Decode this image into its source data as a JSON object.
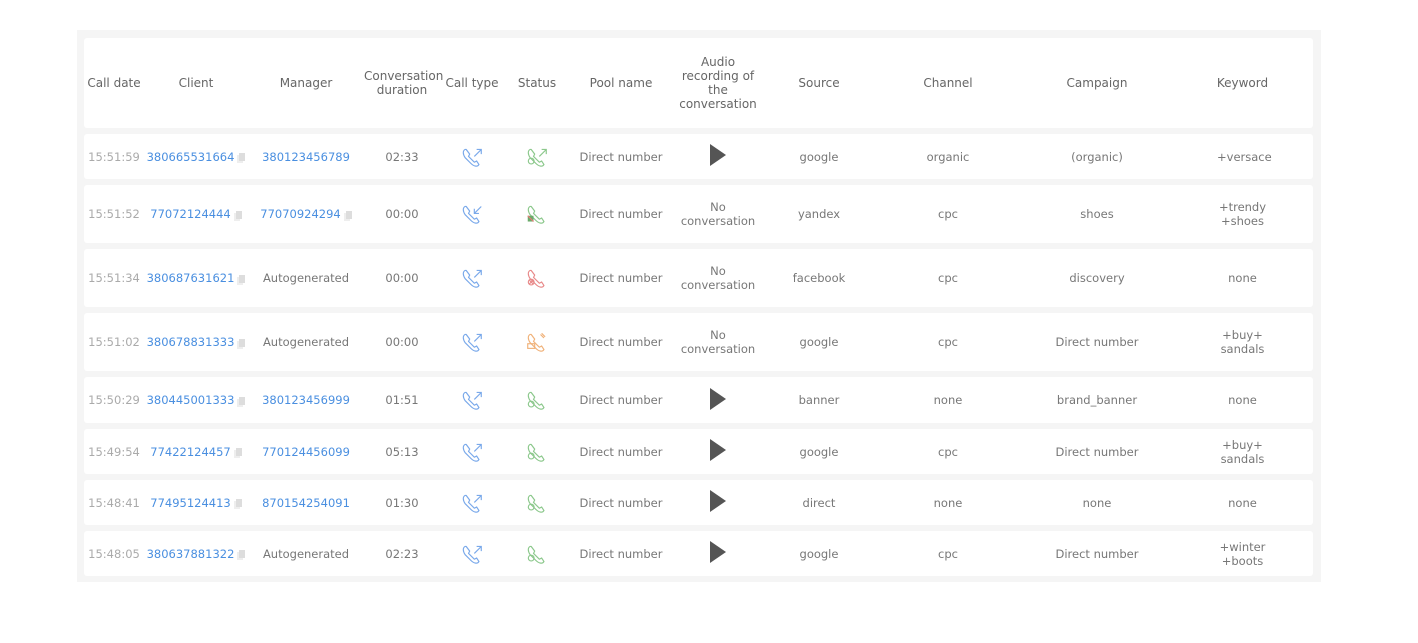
{
  "headers": [
    "Call date",
    "Client",
    "Manager",
    "Conversation duration",
    "Call type",
    "Status",
    "Pool name",
    "Audio recording of the conversation",
    "Source",
    "Channel",
    "Campaign",
    "Keyword"
  ],
  "colors": {
    "link": "#4a8fe0",
    "call_type": "#7aa9ea",
    "answered": "#8cc88c",
    "missed": "#e88a8a",
    "busy": "#f0b27a"
  },
  "rows": [
    {
      "date": "15:51:59",
      "client": "380665531664",
      "manager": "380123456789",
      "manager_link": true,
      "manager_copy": false,
      "duration": "02:33",
      "call_type": "outgoing",
      "status": "answered-forwarded",
      "pool": "Direct number",
      "audio": "play",
      "source": "google",
      "channel": "organic",
      "campaign": "(organic)",
      "keyword": "+versace"
    },
    {
      "date": "15:51:52",
      "client": "77072124444",
      "manager": "77070924294",
      "manager_link": true,
      "manager_copy": true,
      "duration": "00:00",
      "call_type": "incoming",
      "status": "blocked",
      "pool": "Direct number",
      "audio": "No conversation",
      "source": "yandex",
      "channel": "cpc",
      "campaign": "shoes",
      "keyword": "+trendy +shoes"
    },
    {
      "date": "15:51:34",
      "client": "380687631621",
      "manager": "Autogenerated",
      "manager_link": false,
      "manager_copy": false,
      "duration": "00:00",
      "call_type": "outgoing",
      "status": "missed",
      "pool": "Direct number",
      "audio": "No conversation",
      "source": "facebook",
      "channel": "cpc",
      "campaign": "discovery",
      "keyword": "none"
    },
    {
      "date": "15:51:02",
      "client": "380678831333",
      "manager": "Autogenerated",
      "manager_link": false,
      "manager_copy": false,
      "duration": "00:00",
      "call_type": "outgoing",
      "status": "busy",
      "pool": "Direct number",
      "audio": "No conversation",
      "source": "google",
      "channel": "cpc",
      "campaign": "Direct number",
      "keyword": "+buy+ sandals"
    },
    {
      "date": "15:50:29",
      "client": "380445001333",
      "manager": "380123456999",
      "manager_link": true,
      "manager_copy": false,
      "duration": "01:51",
      "call_type": "outgoing",
      "status": "answered",
      "pool": "Direct number",
      "audio": "play",
      "source": "banner",
      "channel": "none",
      "campaign": "brand_banner",
      "keyword": "none"
    },
    {
      "date": "15:49:54",
      "client": "77422124457",
      "manager": "770124456099",
      "manager_link": true,
      "manager_copy": false,
      "duration": "05:13",
      "call_type": "outgoing",
      "status": "answered",
      "pool": "Direct number",
      "audio": "play",
      "source": "google",
      "channel": "cpc",
      "campaign": "Direct number",
      "keyword": "+buy+ sandals"
    },
    {
      "date": "15:48:41",
      "client": "77495124413",
      "manager": "870154254091",
      "manager_link": true,
      "manager_copy": false,
      "duration": "01:30",
      "call_type": "outgoing",
      "status": "answered",
      "pool": "Direct number",
      "audio": "play",
      "source": "direct",
      "channel": "none",
      "campaign": "none",
      "keyword": "none"
    },
    {
      "date": "15:48:05",
      "client": "380637881322",
      "manager": "Autogenerated",
      "manager_link": false,
      "manager_copy": false,
      "duration": "02:23",
      "call_type": "outgoing",
      "status": "answered",
      "pool": "Direct number",
      "audio": "play",
      "source": "google",
      "channel": "cpc",
      "campaign": "Direct number",
      "keyword": "+winter +boots"
    }
  ]
}
